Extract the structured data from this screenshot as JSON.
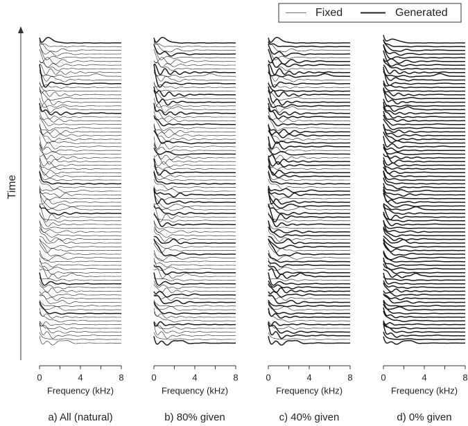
{
  "legend": {
    "entries": [
      "Fixed",
      "Generated"
    ]
  },
  "ylabel": "Time",
  "chart_data": [
    {
      "type": "waterfall",
      "caption": "a) All (natural)",
      "xlabel": "Frequency (kHz)",
      "xlim": [
        0,
        8
      ],
      "xticks": [
        0,
        4,
        8
      ],
      "xminorticks": [
        2,
        6
      ]
    },
    {
      "type": "waterfall",
      "caption": "b) 80% given",
      "xlabel": "Frequency (kHz)",
      "xlim": [
        0,
        8
      ],
      "xticks": [
        0,
        4,
        8
      ],
      "xminorticks": [
        2,
        6
      ]
    },
    {
      "type": "waterfall",
      "caption": "c) 40% given",
      "xlabel": "Frequency (kHz)",
      "xlim": [
        0,
        8
      ],
      "xticks": [
        0,
        4,
        8
      ],
      "xminorticks": [
        2,
        6
      ]
    },
    {
      "type": "waterfall",
      "caption": "d) 0% given",
      "xlabel": "Frequency (kHz)",
      "xlim": [
        0,
        8
      ],
      "xticks": [
        0,
        4,
        8
      ],
      "xminorticks": [
        2,
        6
      ]
    }
  ]
}
